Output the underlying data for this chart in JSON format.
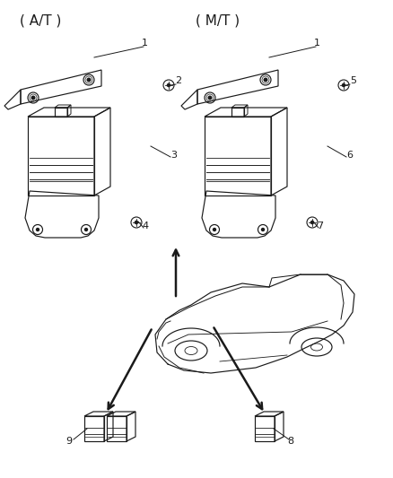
{
  "background_color": "#ffffff",
  "line_color": "#1a1a1a",
  "labels": {
    "AT": "( A/T )",
    "MT": "( M/T )",
    "n1L": "1",
    "n2": "2",
    "n3": "3",
    "n4": "4",
    "n1R": "1",
    "n5": "5",
    "n6": "6",
    "n7": "7",
    "n8": "8",
    "n9": "9"
  },
  "figsize": [
    4.38,
    5.33
  ],
  "dpi": 100
}
